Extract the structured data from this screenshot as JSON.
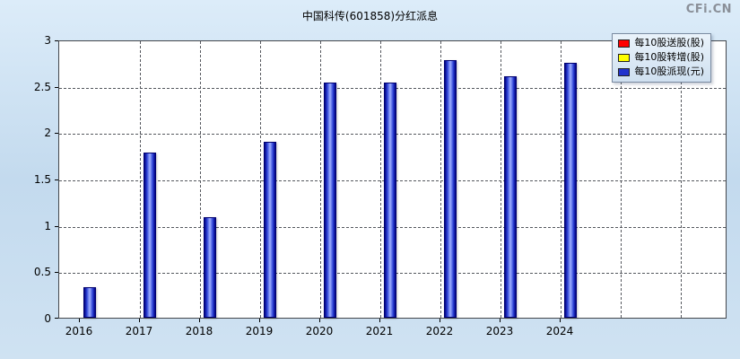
{
  "watermark": "CFi.CN",
  "chart_data": {
    "type": "bar",
    "title": "中国科传(601858)分红派息",
    "categories": [
      "2016",
      "2017",
      "2018",
      "2019",
      "2020",
      "2021",
      "2022",
      "2023",
      "2024"
    ],
    "series": [
      {
        "name": "每10股送股(股)",
        "color": "#ff0000",
        "values": [
          0,
          0,
          0,
          0,
          0,
          0,
          0,
          0,
          0
        ]
      },
      {
        "name": "每10股转增(股)",
        "color": "#ffff00",
        "values": [
          0,
          0,
          0,
          0,
          0,
          0,
          0,
          0,
          0
        ]
      },
      {
        "name": "每10股派现(元)",
        "color": "#2233cc",
        "values": [
          0.33,
          1.78,
          1.08,
          1.9,
          2.54,
          2.54,
          2.78,
          2.6,
          2.75
        ]
      }
    ],
    "ylim": [
      0,
      3
    ],
    "yticks": [
      0,
      0.5,
      1,
      1.5,
      2,
      2.5,
      3
    ],
    "grid": "dashed",
    "legend_position": "top-right"
  }
}
